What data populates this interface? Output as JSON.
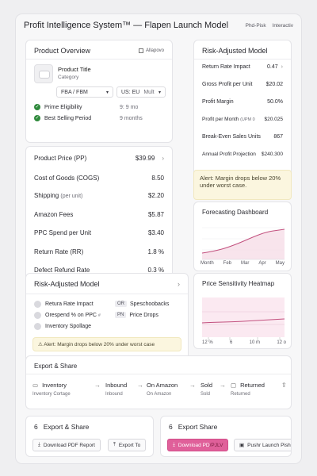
{
  "header": {
    "title": "Profit Intelligence System™ — Flapen Launch Model",
    "chip1": "Phd-Pisk",
    "chip2": "Interactiv"
  },
  "product_overview": {
    "title": "Product Overview",
    "badge": "Allapovo",
    "product_title": "Product Title",
    "category": "Category",
    "fulfillment": "FBA / FBM",
    "marketplace": "US: EU",
    "marketplace_extra": "Mult",
    "prime_label": "Prime Eligibility",
    "prime_value": "9: 9 mo",
    "best_label": "Best Selling Period",
    "best_value": "9 months"
  },
  "costs": [
    {
      "label": "Product Price (PP)",
      "value": "$39.99"
    },
    {
      "label": "Cost of Goods (COGS)",
      "value": "8.50"
    },
    {
      "label": "Shipping",
      "sub": "(per unit)",
      "value": "$2.20"
    },
    {
      "label": "Amazon Fees",
      "value": "$5.87"
    },
    {
      "label": "PPC Spend per Unit",
      "value": "$3.40"
    },
    {
      "label": "Return Rate (RR)",
      "value": "1.8 %"
    },
    {
      "label": "Defect Refund Rate",
      "value": "0.3 %"
    }
  ],
  "risk_panel": {
    "title": "Risk-Adjusted Model",
    "rows": [
      {
        "label": "Return Rate Impact",
        "value": "0.47"
      },
      {
        "label": "Gross Profit per Unit",
        "value": "$20.02"
      },
      {
        "label": "Profit Margin",
        "value": "50.0%"
      },
      {
        "label": "Profit per Month",
        "sub": "(UPM 0",
        "value": "$20.025"
      },
      {
        "label": "Break-Even Sales Units",
        "value": "867"
      },
      {
        "label": "Annual Profit Projection",
        "value": "$240.300"
      }
    ],
    "alert": "Alert: Margin drops below 20% under worst case."
  },
  "risk_model": {
    "title": "Risk-Adjusted Model",
    "items_left": [
      "Retura Rate Impact",
      "Orespend % on PPC",
      "Inventory Spollage"
    ],
    "left_mark": "#",
    "items_right": [
      {
        "tag": "OR",
        "label": "Speschoobacks"
      },
      {
        "tag": "PN",
        "label": "Price Drops"
      }
    ],
    "alert": "Alert: Margin drops below 20% under worst case"
  },
  "forecast": {
    "title": "Forecasting Dashboard",
    "months": [
      "Month",
      "Feb",
      "Mar",
      "Apr",
      "May"
    ]
  },
  "heatmap": {
    "title": "Price Sensitivity Heatmap",
    "ticks": [
      "12 %",
      "6",
      "10 m",
      "12 o"
    ]
  },
  "flow": {
    "title": "Export & Share",
    "steps": [
      {
        "label": "Inventory",
        "sub": "Inventory Cortage"
      },
      {
        "label": "Inbound",
        "sub": "Inbound"
      },
      {
        "label": "On Amazon",
        "sub": "On Amazon"
      },
      {
        "label": "Sold",
        "sub": "Sold"
      },
      {
        "label": "Returned",
        "sub": "Returned"
      }
    ]
  },
  "export_left": {
    "num": "6",
    "title": "Export & Share",
    "btn1": "Download PDF Report",
    "btn2": "Export To"
  },
  "export_right": {
    "num": "6",
    "title": "Export Share",
    "btn1": "Download PD",
    "btn1_mark": "/PJLV",
    "btn2": "Pushr Launch Pish"
  },
  "colors": {
    "accent": "#e0609a",
    "chart_line": "#c2507e",
    "chart_fill": "#f6dbe6",
    "alert_bg": "#fbf6df",
    "check": "#2f8a3c"
  }
}
